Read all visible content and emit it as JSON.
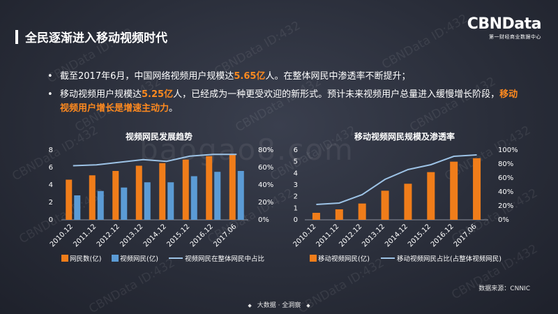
{
  "header": {
    "title": "全民逐渐进入移动视频时代",
    "logo_main": "CBNData",
    "logo_sub": "第一财经商业数据中心"
  },
  "bullets": {
    "b1_pre": "截至2017年6月，中国网络视频用户规模达",
    "b1_hl": "5.65亿",
    "b1_post": "人。在整体网民中渗透率不断提升；",
    "b2_pre": "移动视频用户规模达",
    "b2_hl": "5.25亿",
    "b2_mid": "人，已经成为一种更受欢迎的新形式。预计未来视频用户总量进入缓慢增长阶段，",
    "b2_hl2": "移动视频用户增长是增速主动力",
    "b2_end": "。"
  },
  "watermark": {
    "text": "CBNData ID:432",
    "site": "baogao8.com"
  },
  "source": "数据来源：CNNIC",
  "footer": "大数据 · 全洞察",
  "colors": {
    "orange": "#f07d1a",
    "blue": "#5b9bd5",
    "line": "#9dc3e6"
  },
  "chart_data": [
    {
      "type": "bar",
      "title": "视频网民发展趋势",
      "categories": [
        "2010.12",
        "2011.12",
        "2012.12",
        "2013.12",
        "2014.12",
        "2015.12",
        "2016.12",
        "2017.06"
      ],
      "series": [
        {
          "name": "网民数(亿)",
          "kind": "bar",
          "axis": "left",
          "values": [
            4.6,
            5.1,
            5.6,
            6.2,
            6.5,
            6.9,
            7.3,
            7.5
          ]
        },
        {
          "name": "视频网民(亿)",
          "kind": "bar",
          "axis": "left",
          "values": [
            2.8,
            3.3,
            3.7,
            4.3,
            4.3,
            5.0,
            5.5,
            5.6
          ]
        },
        {
          "name": "视频网民在整体网民中占比",
          "kind": "line",
          "axis": "right",
          "values": [
            0.62,
            0.63,
            0.66,
            0.69,
            0.67,
            0.73,
            0.75,
            0.75
          ]
        }
      ],
      "ylim": [
        0,
        8
      ],
      "yticks": [
        "0",
        "2",
        "4",
        "6",
        "8"
      ],
      "y2lim": [
        0,
        0.8
      ],
      "y2ticks": [
        "0%",
        "20%",
        "40%",
        "60%",
        "80%"
      ],
      "legend": "bottom"
    },
    {
      "type": "bar",
      "title": "移动视频网民规模及渗透率",
      "categories": [
        "2010.12",
        "2011.12",
        "2012.12",
        "2013.12",
        "2014.12",
        "2015.12",
        "2016.12",
        "2017.06"
      ],
      "series": [
        {
          "name": "移动视频网民(亿)",
          "kind": "bar",
          "axis": "left",
          "values": [
            0.6,
            0.9,
            1.4,
            2.5,
            3.1,
            4.1,
            5.0,
            5.3
          ]
        },
        {
          "name": "移动视频网民占比(占整体视频网民)",
          "kind": "line",
          "axis": "right",
          "values": [
            0.22,
            0.24,
            0.36,
            0.58,
            0.72,
            0.79,
            0.91,
            0.93
          ]
        }
      ],
      "ylim": [
        0,
        6
      ],
      "yticks": [
        "0",
        "1",
        "2",
        "3",
        "4",
        "5",
        "6"
      ],
      "y2lim": [
        0,
        1
      ],
      "y2ticks": [
        "0%",
        "20%",
        "40%",
        "60%",
        "80%",
        "100%"
      ],
      "legend": "bottom"
    }
  ]
}
